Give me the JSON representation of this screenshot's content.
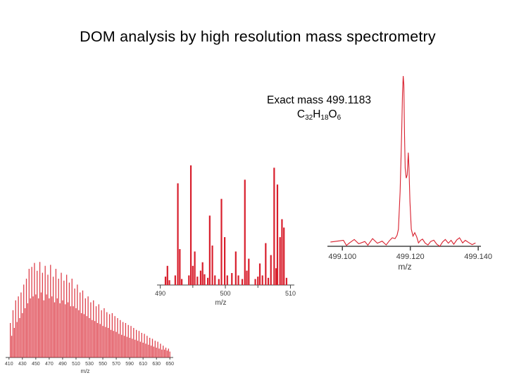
{
  "title": "DOM analysis by high resolution mass spectrometry",
  "annotation": {
    "line1": "Exact mass 499.1183",
    "formula": [
      {
        "t": "C",
        "sub": "32"
      },
      {
        "t": "H",
        "sub": "18"
      },
      {
        "t": "O",
        "sub": "6"
      }
    ]
  },
  "colors": {
    "peak": "#d81e2c",
    "axis": "#444444",
    "text": "#3a3a3a"
  },
  "chart_data": [
    {
      "type": "bar",
      "title": "",
      "xlabel": "m/z",
      "ylabel": "",
      "xlim": [
        405,
        655
      ],
      "ylim": [
        0,
        1
      ],
      "xticks": [
        410,
        430,
        450,
        470,
        490,
        510,
        530,
        550,
        570,
        590,
        610,
        630,
        650
      ],
      "grid": false,
      "note": "dense broadband spectrum; approximate normalized intensities",
      "series": [
        {
          "values": [
            [
              412,
              0.35
            ],
            [
              414,
              0.22
            ],
            [
              416,
              0.48
            ],
            [
              418,
              0.3
            ],
            [
              420,
              0.58
            ],
            [
              422,
              0.36
            ],
            [
              424,
              0.62
            ],
            [
              426,
              0.4
            ],
            [
              428,
              0.66
            ],
            [
              430,
              0.45
            ],
            [
              432,
              0.74
            ],
            [
              434,
              0.5
            ],
            [
              436,
              0.8
            ],
            [
              438,
              0.55
            ],
            [
              440,
              0.9
            ],
            [
              442,
              0.6
            ],
            [
              444,
              0.92
            ],
            [
              446,
              0.62
            ],
            [
              448,
              0.96
            ],
            [
              450,
              0.64
            ],
            [
              452,
              0.88
            ],
            [
              454,
              0.6
            ],
            [
              456,
              0.97
            ],
            [
              458,
              0.66
            ],
            [
              460,
              0.86
            ],
            [
              462,
              0.58
            ],
            [
              464,
              0.93
            ],
            [
              466,
              0.64
            ],
            [
              468,
              0.84
            ],
            [
              470,
              0.6
            ],
            [
              472,
              0.94
            ],
            [
              474,
              0.62
            ],
            [
              476,
              0.82
            ],
            [
              478,
              0.56
            ],
            [
              480,
              0.9
            ],
            [
              482,
              0.6
            ],
            [
              484,
              0.8
            ],
            [
              486,
              0.55
            ],
            [
              488,
              0.86
            ],
            [
              490,
              0.58
            ],
            [
              492,
              0.78
            ],
            [
              494,
              0.54
            ],
            [
              496,
              0.84
            ],
            [
              498,
              0.56
            ],
            [
              500,
              0.76
            ],
            [
              502,
              0.52
            ],
            [
              504,
              0.8
            ],
            [
              506,
              0.52
            ],
            [
              508,
              0.7
            ],
            [
              510,
              0.5
            ],
            [
              512,
              0.74
            ],
            [
              514,
              0.48
            ],
            [
              516,
              0.66
            ],
            [
              518,
              0.45
            ],
            [
              520,
              0.68
            ],
            [
              522,
              0.44
            ],
            [
              524,
              0.6
            ],
            [
              526,
              0.42
            ],
            [
              528,
              0.62
            ],
            [
              530,
              0.4
            ],
            [
              532,
              0.56
            ],
            [
              534,
              0.38
            ],
            [
              536,
              0.58
            ],
            [
              538,
              0.37
            ],
            [
              540,
              0.52
            ],
            [
              542,
              0.35
            ],
            [
              544,
              0.54
            ],
            [
              546,
              0.34
            ],
            [
              548,
              0.48
            ],
            [
              550,
              0.32
            ],
            [
              552,
              0.5
            ],
            [
              554,
              0.31
            ],
            [
              556,
              0.46
            ],
            [
              558,
              0.3
            ],
            [
              560,
              0.44
            ],
            [
              562,
              0.28
            ],
            [
              564,
              0.45
            ],
            [
              566,
              0.27
            ],
            [
              568,
              0.42
            ],
            [
              570,
              0.26
            ],
            [
              572,
              0.4
            ],
            [
              574,
              0.24
            ],
            [
              576,
              0.38
            ],
            [
              578,
              0.23
            ],
            [
              580,
              0.36
            ],
            [
              582,
              0.22
            ],
            [
              584,
              0.35
            ],
            [
              586,
              0.21
            ],
            [
              588,
              0.33
            ],
            [
              590,
              0.2
            ],
            [
              592,
              0.32
            ],
            [
              594,
              0.19
            ],
            [
              596,
              0.3
            ],
            [
              598,
              0.18
            ],
            [
              600,
              0.28
            ],
            [
              602,
              0.17
            ],
            [
              604,
              0.27
            ],
            [
              606,
              0.16
            ],
            [
              608,
              0.25
            ],
            [
              610,
              0.15
            ],
            [
              612,
              0.24
            ],
            [
              614,
              0.14
            ],
            [
              616,
              0.22
            ],
            [
              618,
              0.13
            ],
            [
              620,
              0.2
            ],
            [
              622,
              0.12
            ],
            [
              624,
              0.19
            ],
            [
              626,
              0.11
            ],
            [
              628,
              0.17
            ],
            [
              630,
              0.1
            ],
            [
              632,
              0.16
            ],
            [
              634,
              0.09
            ],
            [
              636,
              0.14
            ],
            [
              638,
              0.08
            ],
            [
              640,
              0.12
            ],
            [
              642,
              0.08
            ],
            [
              644,
              0.1
            ],
            [
              646,
              0.07
            ],
            [
              648,
              0.09
            ],
            [
              650,
              0.06
            ]
          ]
        }
      ]
    },
    {
      "type": "bar",
      "title": "",
      "xlabel": "m/z",
      "ylabel": "",
      "xlim": [
        489.5,
        510.6
      ],
      "ylim": [
        0,
        1
      ],
      "xticks": [
        490,
        500,
        510
      ],
      "grid": false,
      "note": "approximate normalized intensities",
      "series": [
        {
          "values": [
            [
              490.8,
              0.07
            ],
            [
              491.1,
              0.16
            ],
            [
              491.4,
              0.04
            ],
            [
              492.3,
              0.08
            ],
            [
              492.7,
              0.85
            ],
            [
              493.0,
              0.3
            ],
            [
              493.3,
              0.05
            ],
            [
              494.4,
              0.08
            ],
            [
              494.7,
              1.0
            ],
            [
              495.0,
              0.16
            ],
            [
              495.3,
              0.28
            ],
            [
              495.7,
              0.07
            ],
            [
              496.2,
              0.12
            ],
            [
              496.5,
              0.19
            ],
            [
              496.8,
              0.09
            ],
            [
              497.3,
              0.06
            ],
            [
              497.6,
              0.58
            ],
            [
              498.0,
              0.33
            ],
            [
              498.4,
              0.08
            ],
            [
              499.0,
              0.05
            ],
            [
              499.4,
              0.72
            ],
            [
              499.9,
              0.4
            ],
            [
              500.3,
              0.08
            ],
            [
              501.0,
              0.1
            ],
            [
              501.6,
              0.28
            ],
            [
              502.0,
              0.08
            ],
            [
              502.6,
              0.05
            ],
            [
              503.0,
              0.88
            ],
            [
              503.3,
              0.12
            ],
            [
              503.6,
              0.22
            ],
            [
              504.6,
              0.05
            ],
            [
              505.0,
              0.07
            ],
            [
              505.3,
              0.18
            ],
            [
              505.7,
              0.08
            ],
            [
              506.2,
              0.35
            ],
            [
              506.6,
              0.06
            ],
            [
              507.0,
              0.25
            ],
            [
              507.5,
              0.98
            ],
            [
              507.8,
              0.14
            ],
            [
              508.0,
              0.84
            ],
            [
              508.4,
              0.4
            ],
            [
              508.7,
              0.55
            ],
            [
              509.0,
              0.48
            ],
            [
              509.4,
              0.06
            ]
          ]
        }
      ]
    },
    {
      "type": "line",
      "title": "",
      "xlabel": "m/z",
      "ylabel": "",
      "xlim": [
        499.0956,
        499.1408
      ],
      "ylim": [
        0,
        1
      ],
      "xticks": [
        499.1,
        499.12,
        499.14
      ],
      "tick_labels": [
        "499.100",
        "499.120",
        "499.140"
      ],
      "grid": false,
      "note": "approximate normalized intensity profile",
      "series": [
        {
          "values": [
            [
              499.0965,
              0.025
            ],
            [
              499.0985,
              0.03
            ],
            [
              499.1003,
              0.035
            ],
            [
              499.1012,
              0.005
            ],
            [
              499.1021,
              0.02
            ],
            [
              499.1035,
              0.04
            ],
            [
              499.1048,
              0.015
            ],
            [
              499.1066,
              0.028
            ],
            [
              499.1075,
              0.006
            ],
            [
              499.1089,
              0.045
            ],
            [
              499.1103,
              0.018
            ],
            [
              499.1117,
              0.03
            ],
            [
              499.1129,
              0.008
            ],
            [
              499.1138,
              0.032
            ],
            [
              499.1147,
              0.05
            ],
            [
              499.1155,
              0.045
            ],
            [
              499.1161,
              0.065
            ],
            [
              499.1165,
              0.1
            ],
            [
              499.117,
              0.32
            ],
            [
              499.1173,
              0.55
            ],
            [
              499.1175,
              0.7
            ],
            [
              499.1177,
              0.9
            ],
            [
              499.1179,
              1.0
            ],
            [
              499.1181,
              0.95
            ],
            [
              499.1183,
              0.65
            ],
            [
              499.1185,
              0.46
            ],
            [
              499.1188,
              0.4
            ],
            [
              499.1191,
              0.42
            ],
            [
              499.1194,
              0.55
            ],
            [
              499.1196,
              0.46
            ],
            [
              499.1199,
              0.26
            ],
            [
              499.1203,
              0.1
            ],
            [
              499.1208,
              0.06
            ],
            [
              499.1213,
              0.08
            ],
            [
              499.1219,
              0.055
            ],
            [
              499.1224,
              0.02
            ],
            [
              499.123,
              0.035
            ],
            [
              499.1236,
              0.042
            ],
            [
              499.1244,
              0.018
            ],
            [
              499.1252,
              0.008
            ],
            [
              499.126,
              0.028
            ],
            [
              499.1269,
              0.036
            ],
            [
              499.1278,
              0.012
            ],
            [
              499.1287,
              0.0
            ],
            [
              499.1295,
              0.025
            ],
            [
              499.1303,
              0.04
            ],
            [
              499.1312,
              0.018
            ],
            [
              499.132,
              0.035
            ],
            [
              499.1328,
              0.012
            ],
            [
              499.1337,
              0.038
            ],
            [
              499.1345,
              0.05
            ],
            [
              499.1354,
              0.02
            ],
            [
              499.1362,
              0.035
            ],
            [
              499.1372,
              0.022
            ],
            [
              499.1382,
              0.01
            ],
            [
              499.1392,
              0.02
            ]
          ]
        }
      ]
    }
  ]
}
